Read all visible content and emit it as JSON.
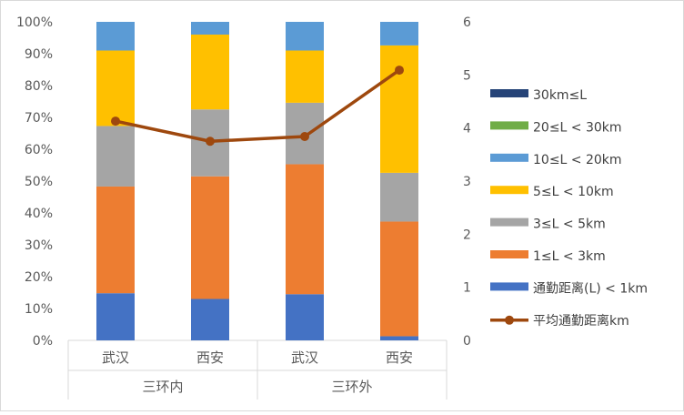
{
  "chart_data": {
    "type": "bar",
    "subtype": "stacked-percent-bar-with-line-secondary-axis",
    "title": "",
    "categories": [
      "武汉",
      "西安",
      "武汉",
      "西安"
    ],
    "category_groups": [
      {
        "label": "三环内",
        "span": [
          0,
          1
        ]
      },
      {
        "label": "三环外",
        "span": [
          2,
          3
        ]
      }
    ],
    "y_left_ticks": [
      "0%",
      "10%",
      "20%",
      "30%",
      "40%",
      "50%",
      "60%",
      "70%",
      "80%",
      "90%",
      "100%"
    ],
    "y_right_ticks": [
      "0",
      "1",
      "2",
      "3",
      "4",
      "5",
      "6"
    ],
    "ylim_left": [
      0,
      100
    ],
    "ylim_right": [
      0,
      6
    ],
    "grid": false,
    "legend_position": "right",
    "series": [
      {
        "name": "通勤距离(L) < 1km",
        "color": "#4472C4",
        "values": [
          14.8,
          13.0,
          14.5,
          1.3
        ]
      },
      {
        "name": "1≤L < 3km",
        "color": "#ED7D31",
        "values": [
          33.5,
          38.5,
          40.8,
          36.0
        ]
      },
      {
        "name": "3≤L < 5km",
        "color": "#A5A5A5",
        "values": [
          19.0,
          21.0,
          19.3,
          15.3
        ]
      },
      {
        "name": "5≤L < 10km",
        "color": "#FFC000",
        "values": [
          23.7,
          23.5,
          16.4,
          40.0
        ]
      },
      {
        "name": "10≤L < 20km",
        "color": "#5B9BD5",
        "values": [
          9.0,
          4.0,
          9.0,
          7.4
        ]
      },
      {
        "name": "20≤L < 30km",
        "color": "#70AD47",
        "values": [
          0,
          0,
          0,
          0
        ]
      },
      {
        "name": "30km≤L",
        "color": "#264478",
        "values": [
          0,
          0,
          0,
          0
        ]
      }
    ],
    "line_series": {
      "name": "平均通勤距离km",
      "color": "#9E480E",
      "axis": "right",
      "values": [
        4.13,
        3.75,
        3.84,
        5.09
      ]
    }
  }
}
